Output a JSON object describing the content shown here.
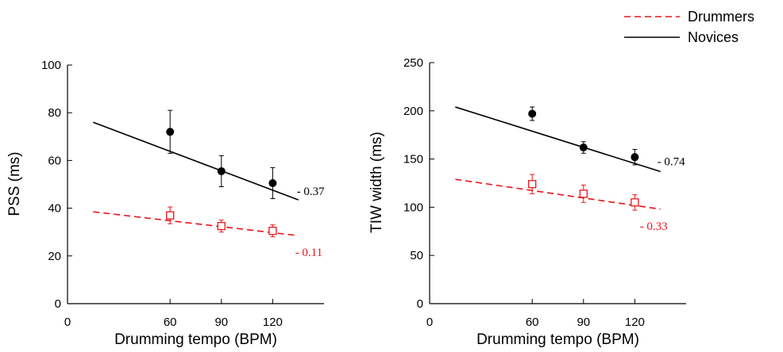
{
  "legend": {
    "items": [
      {
        "label": "Drummers",
        "color": "#e8141b",
        "dash": "dashed"
      },
      {
        "label": "Novices",
        "color": "#000000",
        "dash": "solid"
      }
    ],
    "placement": "top-right"
  },
  "chart_data": [
    {
      "type": "scatter",
      "xlabel": "Drumming tempo (BPM)",
      "ylabel": "PSS (ms)",
      "xlim": [
        0,
        150
      ],
      "ylim": [
        0,
        100
      ],
      "xticks": [
        0,
        60,
        90,
        120
      ],
      "yticks": [
        0,
        20,
        40,
        60,
        80,
        100
      ],
      "grid": false,
      "series": [
        {
          "name": "Novices",
          "color": "#000000",
          "marker": "filled-circle",
          "x": [
            60,
            90,
            120
          ],
          "y": [
            72,
            55.5,
            50.5
          ],
          "err": [
            9,
            6.5,
            6.5
          ],
          "fit": {
            "x": [
              15,
              135
            ],
            "y": [
              76,
              43.5
            ]
          },
          "slope_label": "- 0.37"
        },
        {
          "name": "Drummers",
          "color": "#e8141b",
          "marker": "open-square",
          "x": [
            60,
            90,
            120
          ],
          "y": [
            37,
            32.5,
            30.5
          ],
          "err": [
            3.5,
            2.5,
            2.5
          ],
          "fit": {
            "x": [
              15,
              135
            ],
            "y": [
              38.5,
              28.5
            ]
          },
          "slope_label": "- 0.11"
        }
      ]
    },
    {
      "type": "scatter",
      "xlabel": "Drumming tempo (BPM)",
      "ylabel": "TIW width (ms)",
      "xlim": [
        0,
        150
      ],
      "ylim": [
        0,
        250
      ],
      "xticks": [
        0,
        60,
        90,
        120
      ],
      "yticks": [
        0,
        50,
        100,
        150,
        200,
        250
      ],
      "grid": false,
      "series": [
        {
          "name": "Novices",
          "color": "#000000",
          "marker": "filled-circle",
          "x": [
            60,
            90,
            120
          ],
          "y": [
            197,
            162,
            152
          ],
          "err": [
            7,
            6,
            8
          ],
          "fit": {
            "x": [
              15,
              135
            ],
            "y": [
              204,
              137
            ]
          },
          "slope_label": "- 0.74"
        },
        {
          "name": "Drummers",
          "color": "#e8141b",
          "marker": "open-square",
          "x": [
            60,
            90,
            120
          ],
          "y": [
            124,
            114,
            105
          ],
          "err": [
            10,
            9,
            8
          ],
          "fit": {
            "x": [
              15,
              135
            ],
            "y": [
              129,
              98
            ]
          },
          "slope_label": "- 0.33"
        }
      ]
    }
  ]
}
